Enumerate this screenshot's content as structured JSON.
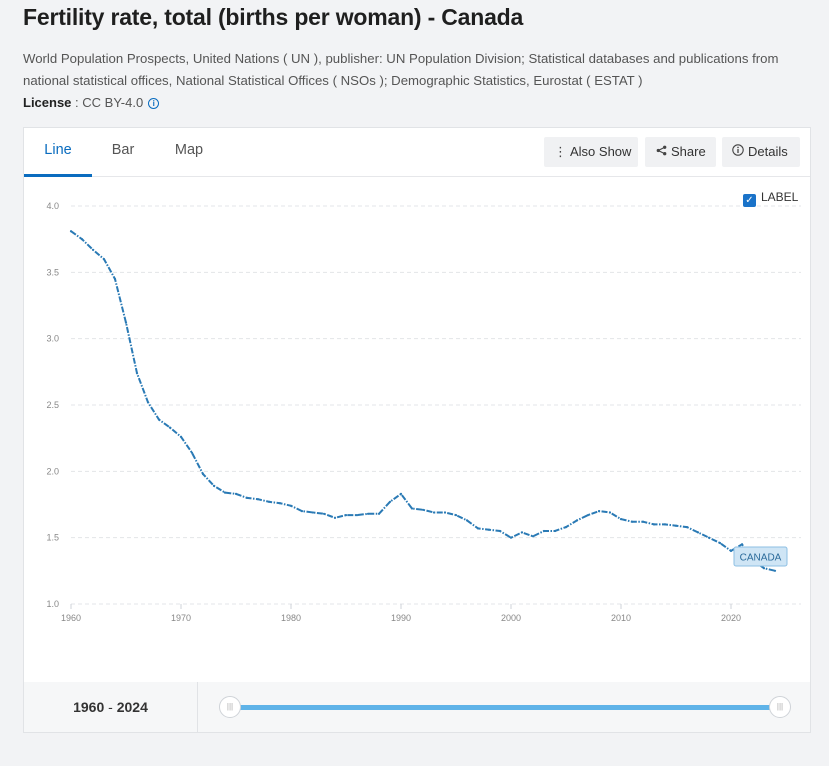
{
  "header": {
    "title": "Fertility rate, total (births per woman) - Canada",
    "source": "World Population Prospects, United Nations ( UN ), publisher: UN Population Division; Statistical databases and publications from national statistical offices, National Statistical Offices ( NSOs ); Demographic Statistics, Eurostat ( ESTAT )",
    "license_label": "License",
    "license_value": " : CC BY-4.0"
  },
  "tabs": [
    {
      "label": "Line",
      "active": true
    },
    {
      "label": "Bar",
      "active": false
    },
    {
      "label": "Map",
      "active": false
    }
  ],
  "toolbar": {
    "also_show": "Also Show",
    "share": "Share",
    "details": "Details"
  },
  "label_toggle": {
    "text": "LABEL",
    "checked": true
  },
  "range": {
    "start": "1960",
    "separator": "-",
    "end": "2024"
  },
  "colors": {
    "line": "#2a7ab5",
    "accent": "#0a6cbf",
    "slider": "#5fb3e8"
  },
  "chart_data": {
    "type": "line",
    "title": "",
    "xlabel": "",
    "ylabel": "",
    "xlim": [
      1960,
      2024
    ],
    "ylim": [
      1.0,
      4.0
    ],
    "yticks": [
      "1.0",
      "1.5",
      "2.0",
      "2.5",
      "3.0",
      "3.5",
      "4.0"
    ],
    "xticks": [
      "1960",
      "1970",
      "1980",
      "1990",
      "2000",
      "2010",
      "2020"
    ],
    "grid": true,
    "series": [
      {
        "name": "CANADA",
        "x": [
          1960,
          1961,
          1962,
          1963,
          1964,
          1965,
          1966,
          1967,
          1968,
          1969,
          1970,
          1971,
          1972,
          1973,
          1974,
          1975,
          1976,
          1977,
          1978,
          1979,
          1980,
          1981,
          1982,
          1983,
          1984,
          1985,
          1986,
          1987,
          1988,
          1989,
          1990,
          1991,
          1992,
          1993,
          1994,
          1995,
          1996,
          1997,
          1998,
          1999,
          2000,
          2001,
          2002,
          2003,
          2004,
          2005,
          2006,
          2007,
          2008,
          2009,
          2010,
          2011,
          2012,
          2013,
          2014,
          2015,
          2016,
          2017,
          2018,
          2019,
          2020,
          2021,
          2022,
          2023,
          2024
        ],
        "y": [
          3.81,
          3.75,
          3.67,
          3.6,
          3.45,
          3.12,
          2.74,
          2.52,
          2.39,
          2.33,
          2.26,
          2.14,
          1.98,
          1.89,
          1.84,
          1.83,
          1.8,
          1.79,
          1.77,
          1.76,
          1.74,
          1.7,
          1.69,
          1.68,
          1.65,
          1.67,
          1.67,
          1.68,
          1.68,
          1.77,
          1.83,
          1.72,
          1.71,
          1.69,
          1.69,
          1.67,
          1.63,
          1.57,
          1.56,
          1.55,
          1.5,
          1.54,
          1.51,
          1.55,
          1.55,
          1.58,
          1.63,
          1.67,
          1.7,
          1.69,
          1.64,
          1.62,
          1.62,
          1.6,
          1.6,
          1.59,
          1.58,
          1.54,
          1.5,
          1.46,
          1.4,
          1.45,
          1.33,
          1.27,
          1.25
        ]
      }
    ]
  }
}
